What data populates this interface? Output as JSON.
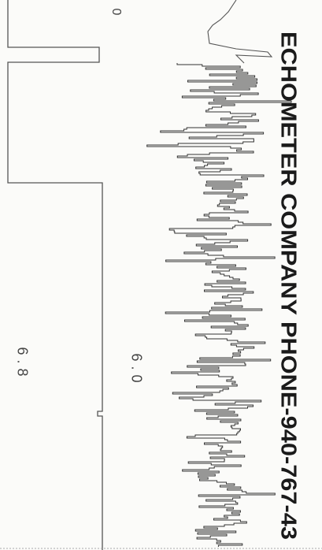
{
  "header": {
    "company": "ECHOMETER COMPANY PHONE-940-767-43"
  },
  "labels": {
    "top": "0",
    "upper_trace": "6.0",
    "lower_trace": "6.8"
  }
}
